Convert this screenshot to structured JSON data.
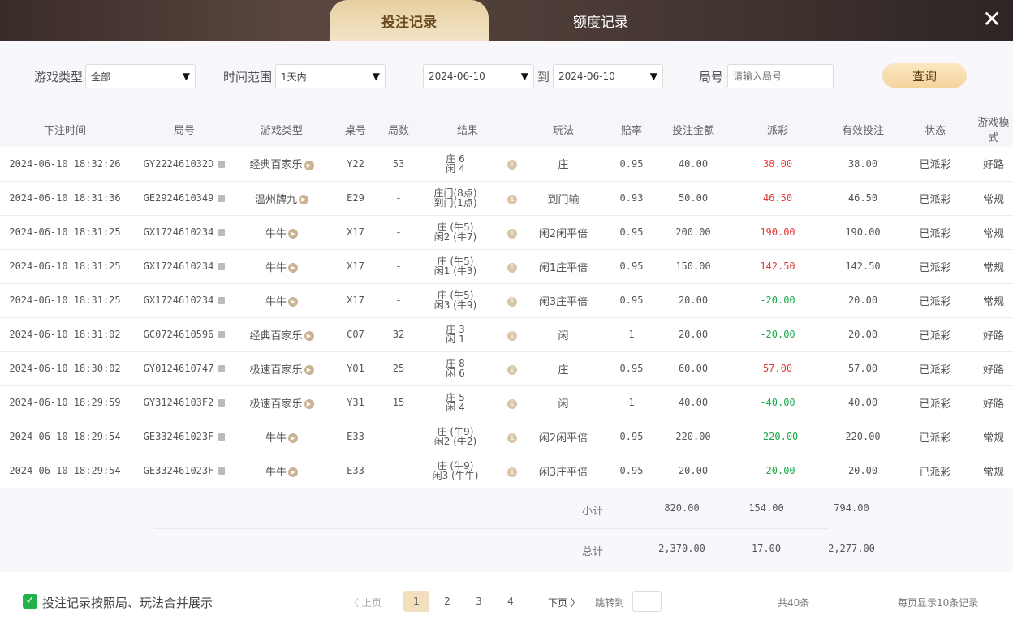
{
  "tabs": [
    {
      "label": "投注记录",
      "active": true
    },
    {
      "label": "额度记录",
      "active": false
    }
  ],
  "close_icon": "close-icon",
  "filters": {
    "game_type_label": "游戏类型",
    "game_type_value": "全部",
    "time_range_label": "时间范围",
    "time_range_value": "1天内",
    "date_from": "2024-06-10",
    "to_label": "到",
    "date_to": "2024-06-10",
    "round_label": "局号",
    "round_placeholder": "请输入局号",
    "query_label": "查询"
  },
  "columns": [
    "下注时间",
    "局号",
    "游戏类型",
    "桌号",
    "局数",
    "结果",
    "玩法",
    "赔率",
    "投注金额",
    "派彩",
    "有效投注",
    "状态",
    "游戏模式"
  ],
  "rows": [
    {
      "time": "2024-06-10 18:32:26",
      "round": "GY222461032D",
      "game": "经典百家乐",
      "table": "Y22",
      "count": "53",
      "r1": "庄 6",
      "r2": "闲 4",
      "play": "庄",
      "odds": "0.95",
      "bet": "40.00",
      "payout": "38.00",
      "sign": "pos",
      "valid": "38.00",
      "status": "已派彩",
      "mode": "好路"
    },
    {
      "time": "2024-06-10 18:31:36",
      "round": "GE2924610349",
      "game": "温州牌九",
      "table": "E29",
      "count": "-",
      "r1": "庄门(8点)",
      "r2": "到门(1点)",
      "play": "到门输",
      "odds": "0.93",
      "bet": "50.00",
      "payout": "46.50",
      "sign": "pos",
      "valid": "46.50",
      "status": "已派彩",
      "mode": "常规"
    },
    {
      "time": "2024-06-10 18:31:25",
      "round": "GX1724610234",
      "game": "牛牛",
      "table": "X17",
      "count": "-",
      "r1": "庄 (牛5)",
      "r2": "闲2 (牛7)",
      "play": "闲2闲平倍",
      "odds": "0.95",
      "bet": "200.00",
      "payout": "190.00",
      "sign": "pos",
      "valid": "190.00",
      "status": "已派彩",
      "mode": "常规"
    },
    {
      "time": "2024-06-10 18:31:25",
      "round": "GX1724610234",
      "game": "牛牛",
      "table": "X17",
      "count": "-",
      "r1": "庄 (牛5)",
      "r2": "闲1 (牛3)",
      "play": "闲1庄平倍",
      "odds": "0.95",
      "bet": "150.00",
      "payout": "142.50",
      "sign": "pos",
      "valid": "142.50",
      "status": "已派彩",
      "mode": "常规"
    },
    {
      "time": "2024-06-10 18:31:25",
      "round": "GX1724610234",
      "game": "牛牛",
      "table": "X17",
      "count": "-",
      "r1": "庄 (牛5)",
      "r2": "闲3 (牛9)",
      "play": "闲3庄平倍",
      "odds": "0.95",
      "bet": "20.00",
      "payout": "-20.00",
      "sign": "neg",
      "valid": "20.00",
      "status": "已派彩",
      "mode": "常规"
    },
    {
      "time": "2024-06-10 18:31:02",
      "round": "GC0724610596",
      "game": "经典百家乐",
      "table": "C07",
      "count": "32",
      "r1": "庄 3",
      "r2": "闲 1",
      "play": "闲",
      "odds": "1",
      "bet": "20.00",
      "payout": "-20.00",
      "sign": "neg",
      "valid": "20.00",
      "status": "已派彩",
      "mode": "好路"
    },
    {
      "time": "2024-06-10 18:30:02",
      "round": "GY0124610747",
      "game": "极速百家乐",
      "table": "Y01",
      "count": "25",
      "r1": "庄 8",
      "r2": "闲 6",
      "play": "庄",
      "odds": "0.95",
      "bet": "60.00",
      "payout": "57.00",
      "sign": "pos",
      "valid": "57.00",
      "status": "已派彩",
      "mode": "好路"
    },
    {
      "time": "2024-06-10 18:29:59",
      "round": "GY31246103F2",
      "game": "极速百家乐",
      "table": "Y31",
      "count": "15",
      "r1": "庄 5",
      "r2": "闲 4",
      "play": "闲",
      "odds": "1",
      "bet": "40.00",
      "payout": "-40.00",
      "sign": "neg",
      "valid": "40.00",
      "status": "已派彩",
      "mode": "好路"
    },
    {
      "time": "2024-06-10 18:29:54",
      "round": "GE332461023F",
      "game": "牛牛",
      "table": "E33",
      "count": "-",
      "r1": "庄 (牛9)",
      "r2": "闲2 (牛2)",
      "play": "闲2闲平倍",
      "odds": "0.95",
      "bet": "220.00",
      "payout": "-220.00",
      "sign": "neg",
      "valid": "220.00",
      "status": "已派彩",
      "mode": "常规"
    },
    {
      "time": "2024-06-10 18:29:54",
      "round": "GE332461023F",
      "game": "牛牛",
      "table": "E33",
      "count": "-",
      "r1": "庄 (牛9)",
      "r2": "闲3 (牛牛)",
      "play": "闲3庄平倍",
      "odds": "0.95",
      "bet": "20.00",
      "payout": "-20.00",
      "sign": "neg",
      "valid": "20.00",
      "status": "已派彩",
      "mode": "常规"
    }
  ],
  "subtotal": {
    "label": "小计",
    "bet": "820.00",
    "payout": "154.00",
    "valid": "794.00"
  },
  "total": {
    "label": "总计",
    "bet": "2,370.00",
    "payout": "17.00",
    "valid": "2,277.00"
  },
  "footer": {
    "merge_label": "投注记录按照局、玩法合并展示",
    "merge_checked": true,
    "prev": "〈 上页",
    "pages": [
      "1",
      "2",
      "3",
      "4"
    ],
    "current_page": "1",
    "next": "下页 〉",
    "jump_label": "跳转到",
    "total_count": "共40条",
    "per_page": "每页显示10条记录"
  },
  "colors": {
    "positive": "#e23b3b",
    "negative": "#19a84a",
    "accent": "#f2dfbd"
  }
}
